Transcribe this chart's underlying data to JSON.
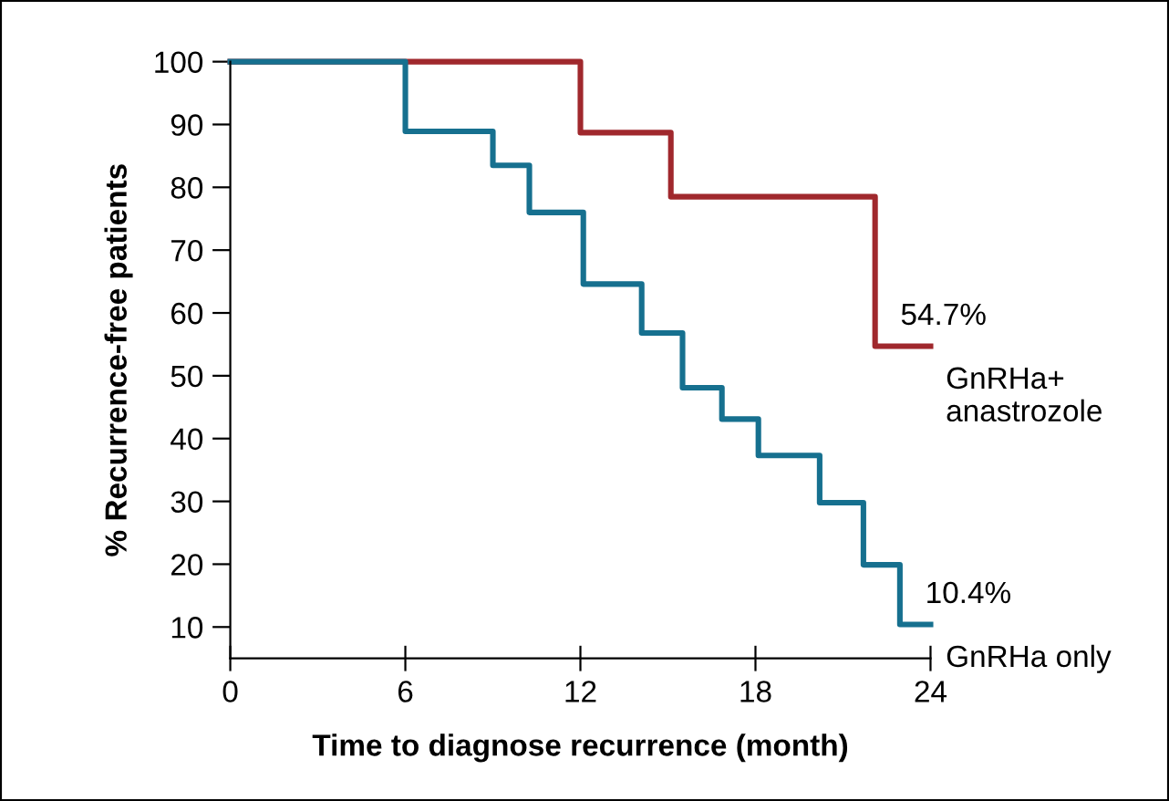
{
  "chart_data": {
    "type": "step",
    "xlabel": "Time to diagnose recurrence (month)",
    "ylabel": "% Recurrence-free patients",
    "xlim": [
      0,
      24
    ],
    "xticks": [
      0,
      6,
      12,
      18,
      24
    ],
    "ylim": [
      5,
      100
    ],
    "yticks": [
      10,
      20,
      30,
      40,
      50,
      60,
      70,
      80,
      90,
      100
    ],
    "grid": false,
    "legend": false,
    "series": [
      {
        "name": "GnRHa+\nanastrozole",
        "color": "#a0282d",
        "x": [
          0,
          12,
          15.1,
          22.1,
          24
        ],
        "values": [
          100,
          88.7,
          78.5,
          54.7,
          54.7
        ]
      },
      {
        "name": "GnRHa only",
        "color": "#16708f",
        "x": [
          0,
          6,
          9,
          10.25,
          12.1,
          14.1,
          15.5,
          16.85,
          18.1,
          20.2,
          21.7,
          22.95,
          24
        ],
        "values": [
          100,
          88.9,
          83.5,
          76,
          64.6,
          56.8,
          48.1,
          43.1,
          37.3,
          29.8,
          19.9,
          10.4,
          10.4
        ]
      }
    ],
    "annotations": [
      {
        "text": "54.7%",
        "x": 22.1,
        "y": 54.7
      },
      {
        "text": "10.4%",
        "x": 22.95,
        "y": 10.4
      }
    ]
  }
}
